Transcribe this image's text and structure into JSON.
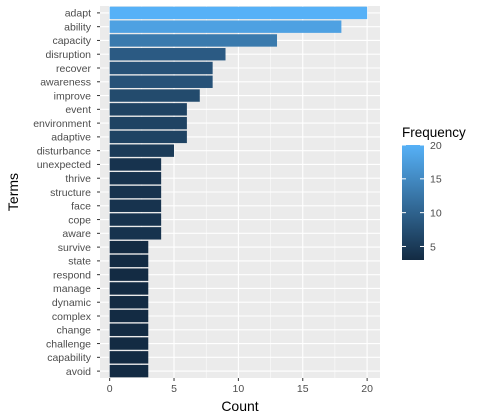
{
  "chart_data": {
    "type": "bar",
    "orientation": "horizontal",
    "categories": [
      "adapt",
      "ability",
      "capacity",
      "disruption",
      "recover",
      "awareness",
      "improve",
      "event",
      "environment",
      "adaptive",
      "disturbance",
      "unexpected",
      "thrive",
      "structure",
      "face",
      "cope",
      "aware",
      "survive",
      "state",
      "respond",
      "manage",
      "dynamic",
      "complex",
      "change",
      "challenge",
      "capability",
      "avoid"
    ],
    "values": [
      20,
      18,
      13,
      9,
      8,
      8,
      7,
      6,
      6,
      6,
      5,
      4,
      4,
      4,
      4,
      4,
      4,
      3,
      3,
      3,
      3,
      3,
      3,
      3,
      3,
      3,
      3
    ],
    "xlabel": "Count",
    "ylabel": "Terms",
    "xlim": [
      0,
      20
    ],
    "xticks": [
      0,
      5,
      10,
      15,
      20
    ],
    "grid": true,
    "legend": {
      "title": "Frequency",
      "position": "right",
      "min": 3,
      "max": 20,
      "ticks": [
        5,
        10,
        15,
        20
      ],
      "color_low": "#132B43",
      "color_high": "#56B1F7"
    },
    "panel_background": "#EBEBEB",
    "grid_color": "#FFFFFF"
  }
}
